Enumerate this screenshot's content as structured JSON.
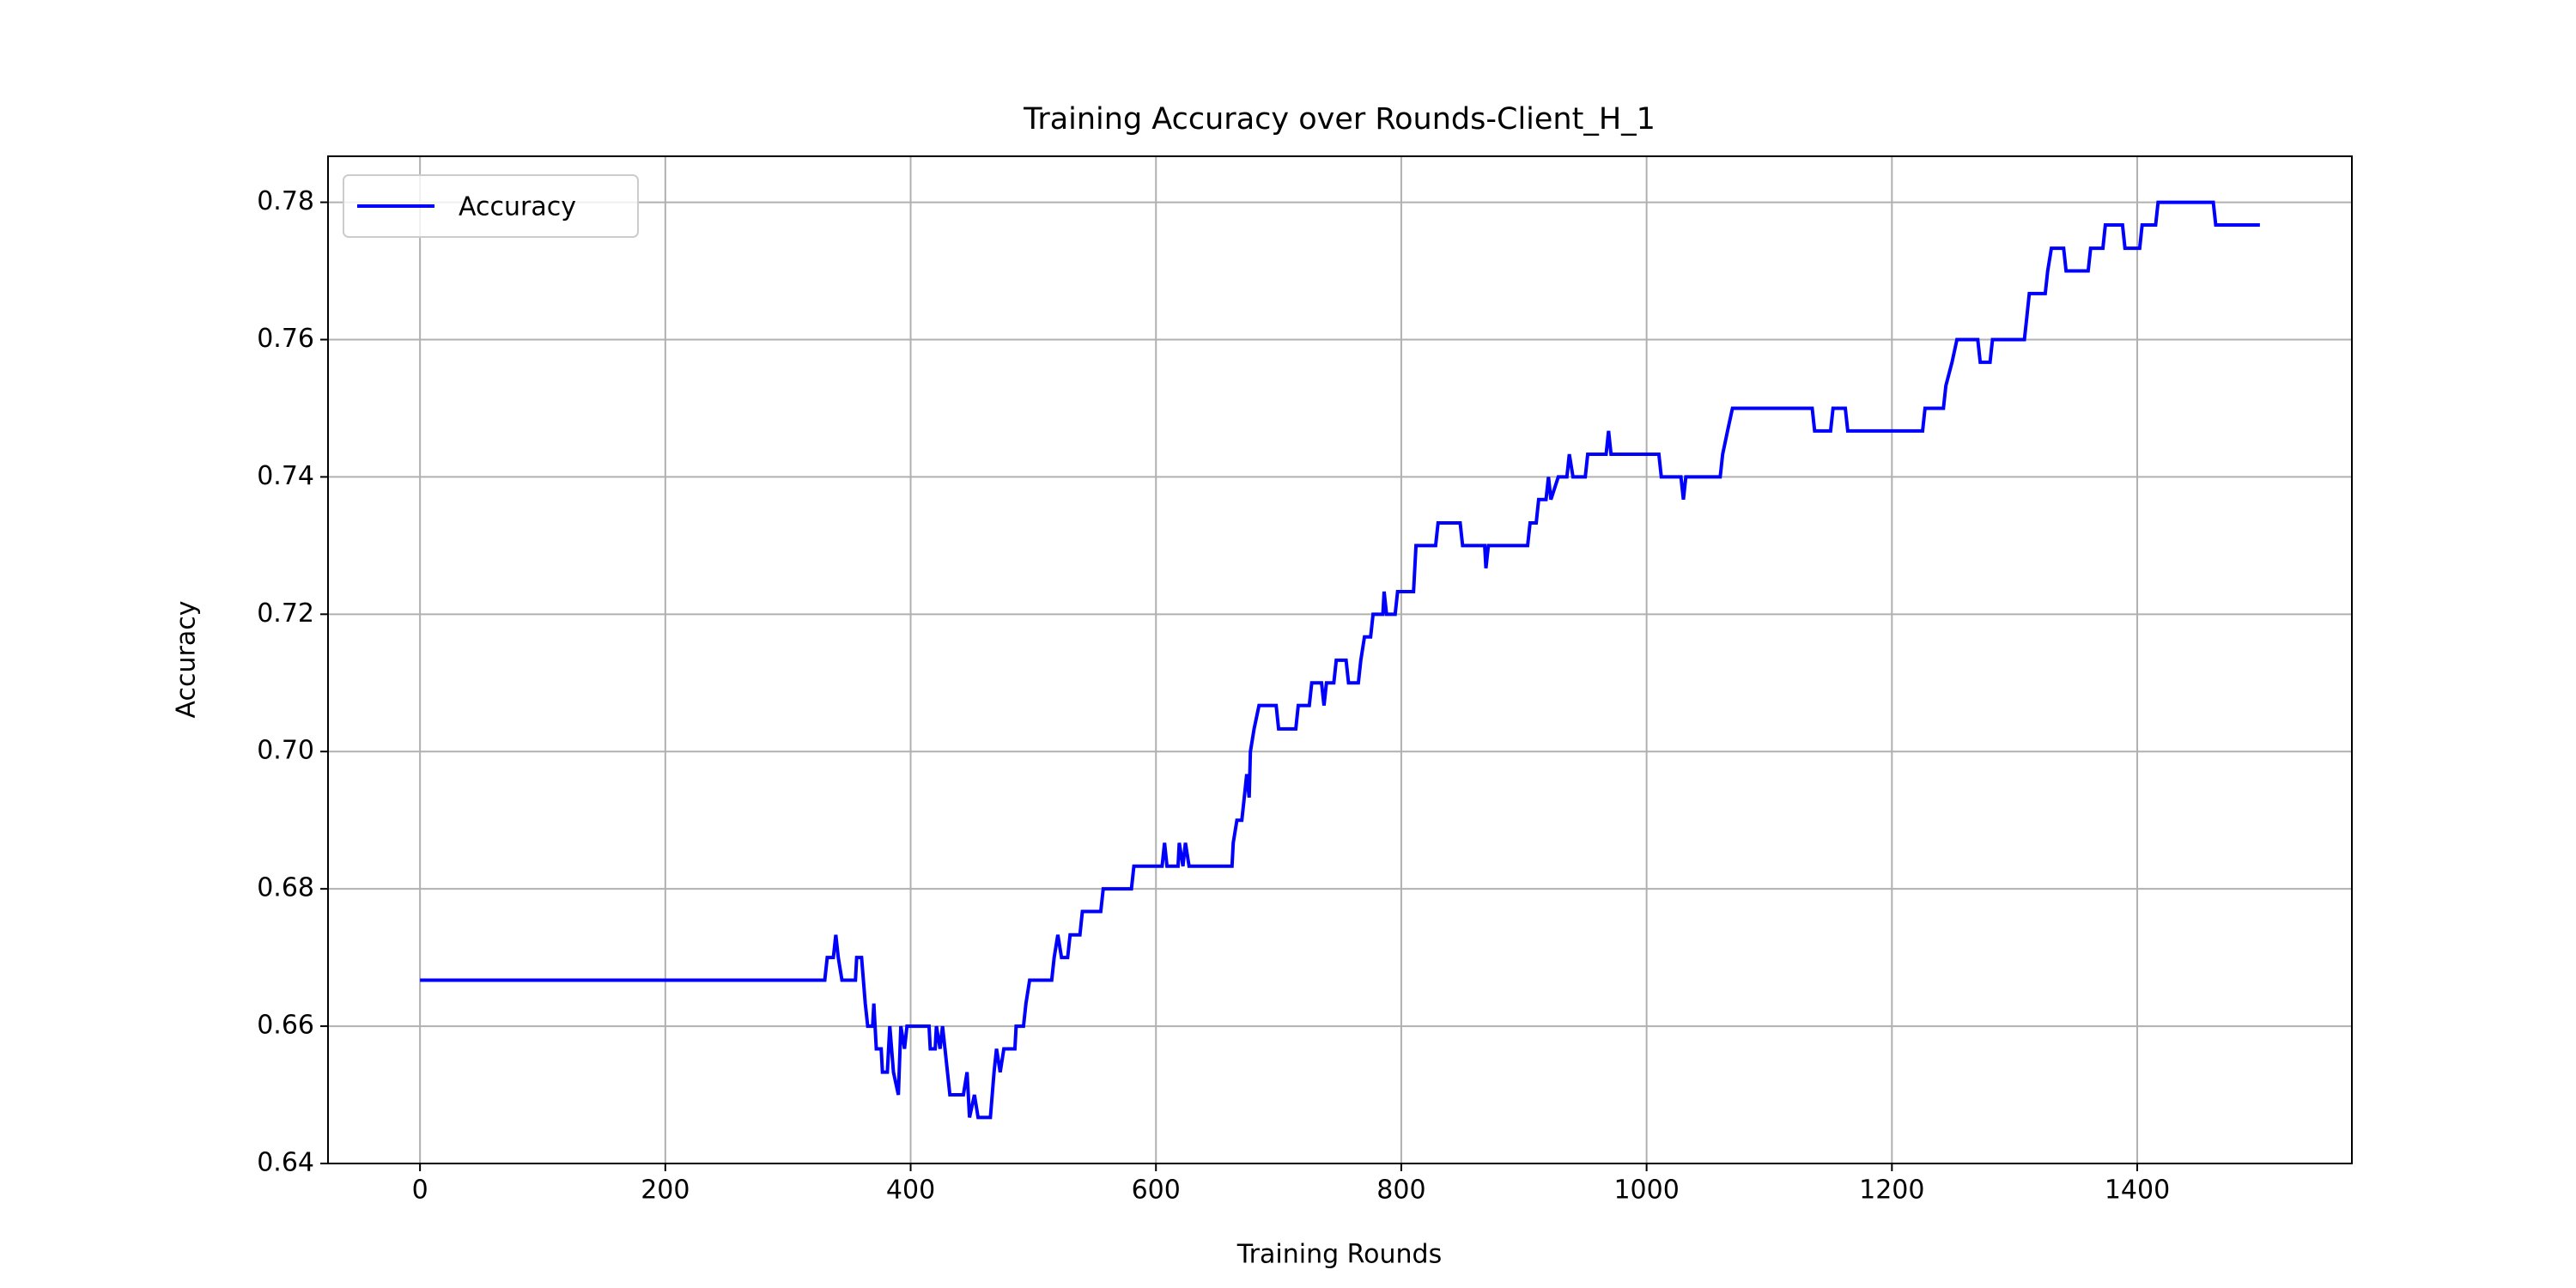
{
  "chart_data": {
    "type": "line",
    "title": "Training Accuracy over Rounds-Client_H_1",
    "xlabel": "Training Rounds",
    "ylabel": "Accuracy",
    "xlim": [
      -75,
      1575
    ],
    "ylim": [
      0.64,
      0.7867
    ],
    "xticks": [
      0,
      200,
      400,
      600,
      800,
      1000,
      1200,
      1400
    ],
    "yticks": [
      0.64,
      0.66,
      0.68,
      {
        "value": 0.7,
        "label": "0.70"
      },
      0.72,
      0.74,
      0.76,
      0.78
    ],
    "grid": true,
    "legend": "upper left",
    "x": [
      0,
      330,
      332,
      337,
      339,
      341,
      344,
      355,
      356,
      360,
      363,
      365,
      369,
      370,
      372,
      376,
      377,
      381,
      383,
      386,
      390,
      392,
      395,
      397,
      415,
      416,
      420,
      421,
      424,
      426,
      428,
      432,
      443,
      446,
      448,
      452,
      455,
      465,
      468,
      470,
      473,
      476,
      485,
      486,
      492,
      494,
      497,
      515,
      517,
      520,
      523,
      528,
      530,
      538,
      540,
      555,
      557,
      580,
      582,
      605,
      607,
      609,
      618,
      619,
      622,
      624,
      627,
      662,
      663,
      666,
      670,
      672,
      674,
      676,
      677,
      680,
      684,
      698,
      700,
      714,
      716,
      725,
      727,
      735,
      737,
      739,
      745,
      747,
      755,
      757,
      765,
      767,
      770,
      775,
      777,
      785,
      786,
      788,
      795,
      797,
      810,
      812,
      828,
      830,
      848,
      850,
      868,
      869,
      871,
      903,
      905,
      910,
      912,
      918,
      920,
      922,
      928,
      935,
      937,
      940,
      950,
      952,
      967,
      969,
      971,
      1010,
      1012,
      1028,
      1030,
      1032,
      1060,
      1062,
      1066,
      1070,
      1135,
      1137,
      1150,
      1152,
      1162,
      1164,
      1225,
      1227,
      1242,
      1244,
      1249,
      1253,
      1270,
      1272,
      1280,
      1282,
      1308,
      1310,
      1312,
      1325,
      1327,
      1330,
      1340,
      1342,
      1360,
      1362,
      1372,
      1374,
      1388,
      1390,
      1402,
      1404,
      1415,
      1417,
      1462,
      1464,
      1500
    ],
    "series": [
      {
        "name": "Accuracy",
        "color": "#0000ff",
        "values": [
          0.6667,
          0.6667,
          0.67,
          0.67,
          0.6733,
          0.67,
          0.6667,
          0.6667,
          0.67,
          0.67,
          0.6633,
          0.66,
          0.66,
          0.6633,
          0.6567,
          0.6567,
          0.6533,
          0.6533,
          0.66,
          0.6533,
          0.65,
          0.66,
          0.6567,
          0.66,
          0.66,
          0.6567,
          0.6567,
          0.66,
          0.6567,
          0.66,
          0.6567,
          0.65,
          0.65,
          0.6533,
          0.6467,
          0.65,
          0.6467,
          0.6467,
          0.6533,
          0.6567,
          0.6533,
          0.6567,
          0.6567,
          0.66,
          0.66,
          0.6633,
          0.6667,
          0.6667,
          0.67,
          0.6733,
          0.67,
          0.67,
          0.6733,
          0.6733,
          0.6767,
          0.6767,
          0.68,
          0.68,
          0.6833,
          0.6833,
          0.6867,
          0.6833,
          0.6833,
          0.6867,
          0.6833,
          0.6867,
          0.6833,
          0.6833,
          0.6867,
          0.69,
          0.69,
          0.6933,
          0.6967,
          0.6933,
          0.7,
          0.7033,
          0.7067,
          0.7067,
          0.7033,
          0.7033,
          0.7067,
          0.7067,
          0.71,
          0.71,
          0.7067,
          0.71,
          0.71,
          0.7133,
          0.7133,
          0.71,
          0.71,
          0.7133,
          0.7167,
          0.7167,
          0.72,
          0.72,
          0.7233,
          0.72,
          0.72,
          0.7233,
          0.7233,
          0.73,
          0.73,
          0.7333,
          0.7333,
          0.73,
          0.73,
          0.7267,
          0.73,
          0.73,
          0.7333,
          0.7333,
          0.7367,
          0.7367,
          0.74,
          0.7367,
          0.74,
          0.74,
          0.7433,
          0.74,
          0.74,
          0.7433,
          0.7433,
          0.7467,
          0.7433,
          0.7433,
          0.74,
          0.74,
          0.7367,
          0.74,
          0.74,
          0.7433,
          0.7467,
          0.75,
          0.75,
          0.7467,
          0.7467,
          0.75,
          0.75,
          0.7467,
          0.7467,
          0.75,
          0.75,
          0.7533,
          0.7567,
          0.76,
          0.76,
          0.7567,
          0.7567,
          0.76,
          0.76,
          0.7633,
          0.7667,
          0.7667,
          0.77,
          0.7733,
          0.7733,
          0.77,
          0.77,
          0.7733,
          0.7733,
          0.7767,
          0.7767,
          0.7733,
          0.7733,
          0.7767,
          0.7767,
          0.78,
          0.78,
          0.7767,
          0.7767
        ]
      }
    ]
  }
}
